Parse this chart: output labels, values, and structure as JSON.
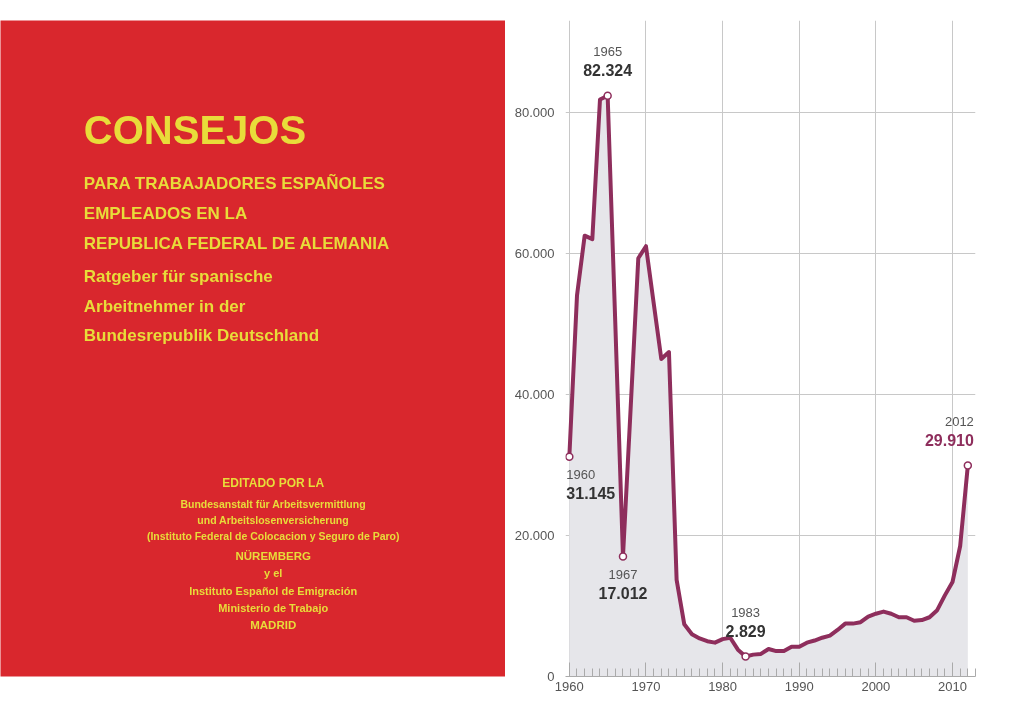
{
  "chart_data": [
    {
      "type": "other",
      "title": "CONSEJOS",
      "subtitle": "PARA TRABAJADORES ESPAÑOLES\nEMPLEADOS EN LA\nREPUBLICA FEDERAL DE ALEMANIA",
      "annotations": [
        "Ratgeber für spanische\nArbeitnehmer in der\nBundesrepublik Deutschland",
        "EDITADO POR LA",
        "Bundesanstalt für Arbeitsvermittlung\nund Arbeitslosenversicherung\n(Instituto Federal de Colocacion y Seguro de Paro)",
        "NÜREMBERG",
        "y el",
        "Instituto Español de Emigración\nMinisterio de Trabajo",
        "MADRID"
      ]
    },
    {
      "type": "area",
      "x": [
        1960,
        1961,
        1962,
        1963,
        1964,
        1965,
        1966,
        1967,
        1968,
        1969,
        1970,
        1971,
        1972,
        1973,
        1974,
        1975,
        1976,
        1977,
        1978,
        1979,
        1980,
        1981,
        1982,
        1983,
        1984,
        1985,
        1986,
        1987,
        1988,
        1989,
        1990,
        1991,
        1992,
        1993,
        1994,
        1995,
        1996,
        1997,
        1998,
        1999,
        2000,
        2001,
        2002,
        2003,
        2004,
        2005,
        2006,
        2007,
        2008,
        2009,
        2010,
        2011,
        2012
      ],
      "series": [
        {
          "color": "#8e2e5c",
          "values": [
            31145,
            54000,
            62500,
            62000,
            81800,
            82324,
            50000,
            17012,
            38000,
            59300,
            61000,
            53000,
            45000,
            46000,
            13700,
            7400,
            6000,
            5400,
            5000,
            4800,
            5300,
            5500,
            3800,
            2829,
            3100,
            3200,
            3900,
            3600,
            3600,
            4200,
            4200,
            4800,
            5100,
            5500,
            5800,
            6600,
            7500,
            7500,
            7700,
            8500,
            8900,
            9200,
            8900,
            8400,
            8400,
            7900,
            8000,
            8400,
            9400,
            11500,
            13400,
            18500,
            29910
          ]
        }
      ],
      "xlim": [
        1959.5,
        2013
      ],
      "ylim": [
        0,
        93000
      ],
      "xticks": [
        1960,
        1970,
        1980,
        1990,
        2000,
        2010
      ],
      "yticks": [
        0,
        {
          "value": 20000,
          "label": "20.000"
        },
        {
          "value": 40000,
          "label": "40.000"
        },
        {
          "value": 60000,
          "label": "60.000"
        },
        {
          "value": 80000,
          "label": "80.000"
        }
      ],
      "grid": true,
      "annotations": [
        {
          "text": "1960",
          "x": 1960,
          "y": 31145
        },
        {
          "text": "31.145",
          "x": 1960,
          "y": 31145
        },
        {
          "text": "1965",
          "x": 1965,
          "y": 82324
        },
        {
          "text": "82.324",
          "x": 1965,
          "y": 82324
        },
        {
          "text": "1967",
          "x": 1967,
          "y": 17012
        },
        {
          "text": "17.012",
          "x": 1967,
          "y": 17012
        },
        {
          "text": "1983",
          "x": 1983,
          "y": 2829
        },
        {
          "text": "2.829",
          "x": 1983,
          "y": 2829
        },
        {
          "text": "2012",
          "x": 2012,
          "y": 29910
        },
        {
          "text": "29.910",
          "x": 2012,
          "y": 29910
        }
      ]
    }
  ]
}
